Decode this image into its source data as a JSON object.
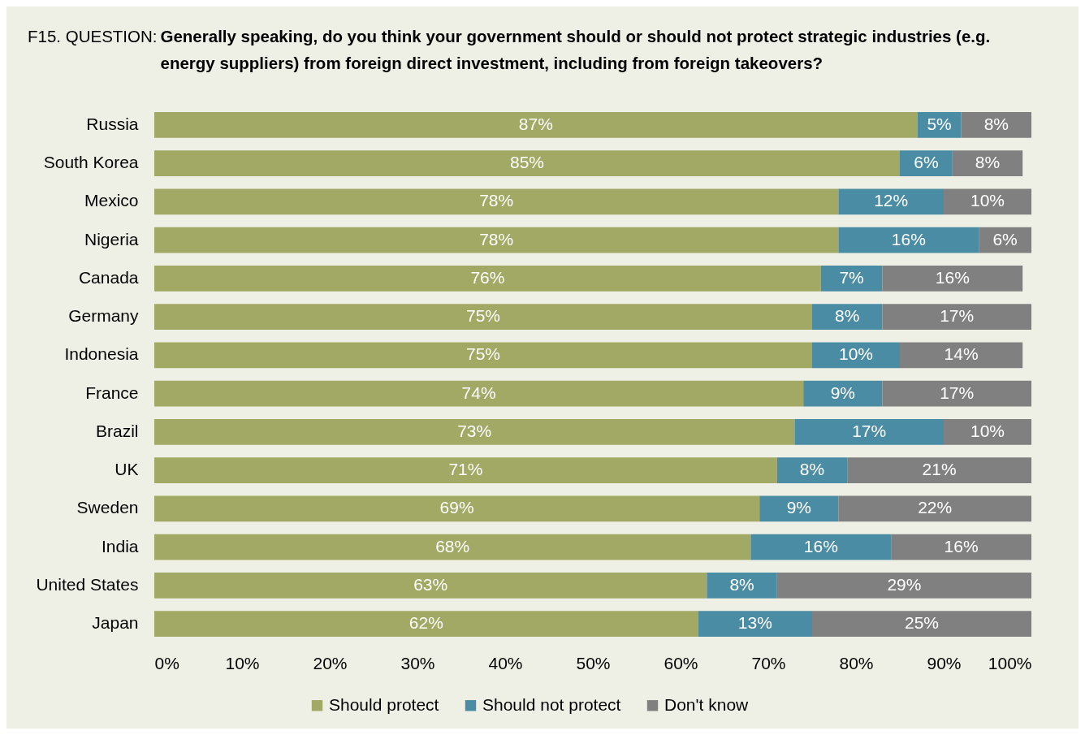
{
  "chart_data": {
    "type": "bar",
    "orientation": "horizontal",
    "stacked": true,
    "title": "F15. QUESTION:",
    "subtitle": "Generally speaking, do you think your government should or should not protect strategic industries (e.g. energy suppliers) from foreign direct investment, including from foreign takeovers?",
    "categories": [
      "Russia",
      "South Korea",
      "Mexico",
      "Nigeria",
      "Canada",
      "Germany",
      "Indonesia",
      "France",
      "Brazil",
      "UK",
      "Sweden",
      "India",
      "United States",
      "Japan"
    ],
    "series": [
      {
        "name": "Should protect",
        "color": "#a2a964",
        "values": [
          87,
          85,
          78,
          78,
          76,
          75,
          75,
          74,
          73,
          71,
          69,
          68,
          63,
          62
        ],
        "value_labels": [
          "87%",
          "85%",
          "78%",
          "78%",
          "76%",
          "75%",
          "75%",
          "74%",
          "73%",
          "71%",
          "69%",
          "68%",
          "63%",
          "62%"
        ]
      },
      {
        "name": "Should not protect",
        "color": "#4b8ca5",
        "values": [
          5,
          6,
          12,
          16,
          7,
          8,
          10,
          9,
          17,
          8,
          9,
          16,
          8,
          13
        ],
        "value_labels": [
          "5%",
          "6%",
          "12%",
          "16%",
          "7%",
          "8%",
          "10%",
          "9%",
          "17%",
          "8%",
          "9%",
          "16%",
          "8%",
          "13%"
        ]
      },
      {
        "name": "Don't know",
        "color": "#808080",
        "values": [
          8,
          8,
          10,
          6,
          16,
          17,
          14,
          17,
          10,
          21,
          22,
          16,
          29,
          25
        ],
        "value_labels": [
          "8%",
          "8%",
          "10%",
          "6%",
          "16%",
          "17%",
          "14%",
          "17%",
          "10%",
          "21%",
          "22%",
          "16%",
          "29%",
          "25%"
        ]
      }
    ],
    "xlim": [
      0,
      100
    ],
    "xticks": [
      {
        "value": 0,
        "label": "0%"
      },
      {
        "value": 10,
        "label": "10%"
      },
      {
        "value": 20,
        "label": "20%"
      },
      {
        "value": 30,
        "label": "30%"
      },
      {
        "value": 40,
        "label": "40%"
      },
      {
        "value": 50,
        "label": "50%"
      },
      {
        "value": 60,
        "label": "60%"
      },
      {
        "value": 70,
        "label": "70%"
      },
      {
        "value": 80,
        "label": "80%"
      },
      {
        "value": 90,
        "label": "90%"
      },
      {
        "value": 100,
        "label": "100%"
      }
    ],
    "grid": false,
    "legend": "bottom"
  }
}
